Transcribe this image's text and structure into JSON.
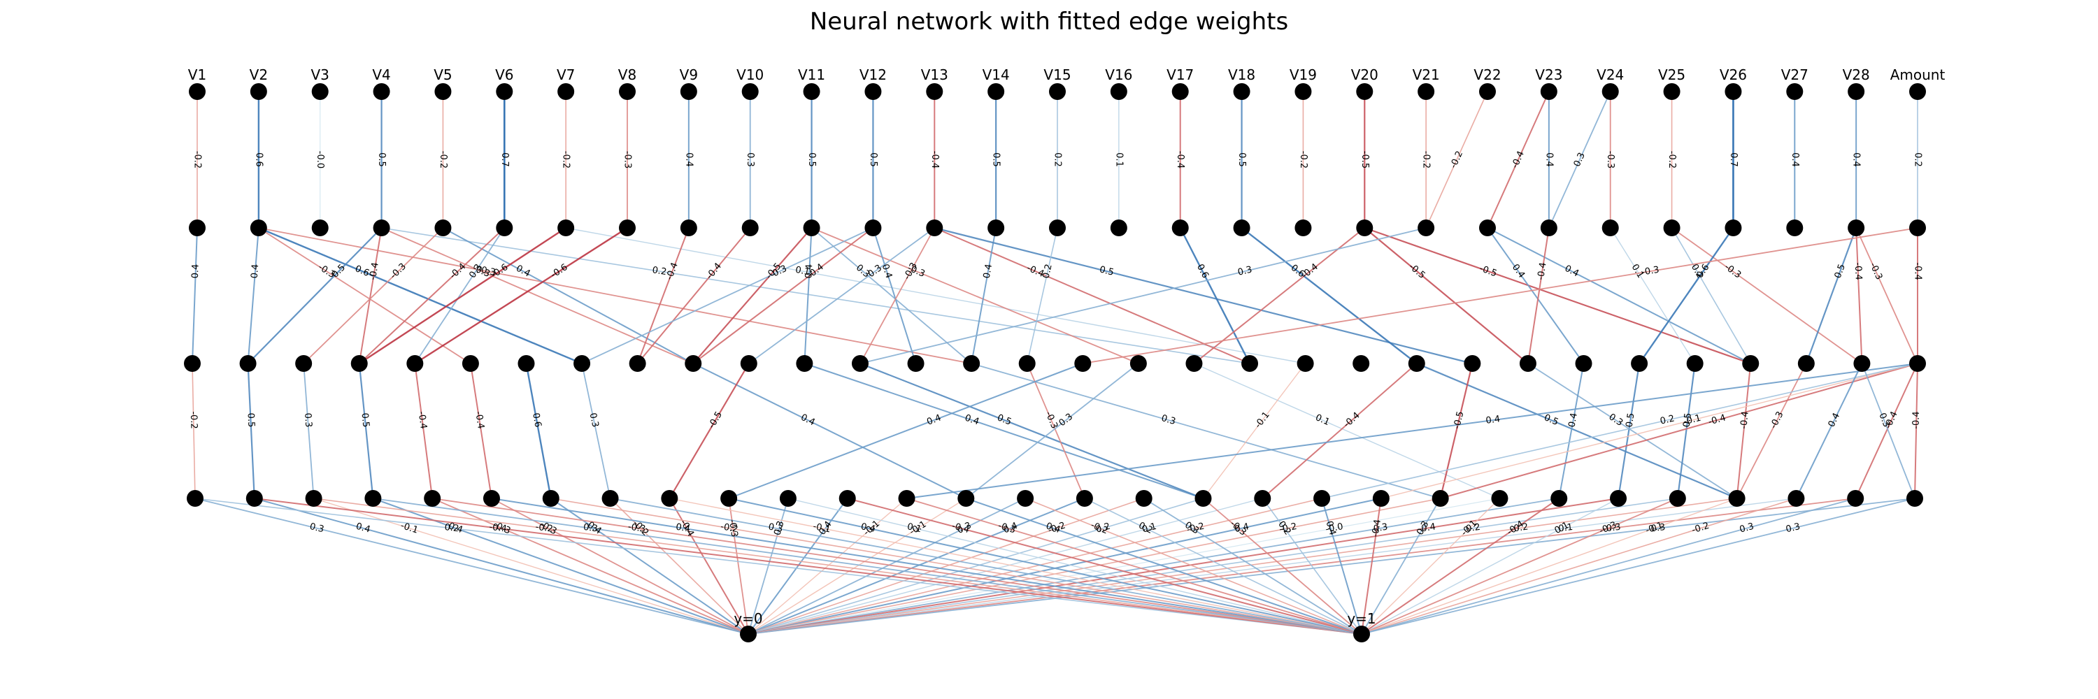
{
  "title": "Neural network with fitted edge weights",
  "input_labels": [
    "V1",
    "V2",
    "V3",
    "V4",
    "V5",
    "V6",
    "V7",
    "V8",
    "V9",
    "V10",
    "V11",
    "V12",
    "V13",
    "V14",
    "V15",
    "V16",
    "V17",
    "V18",
    "V19",
    "V20",
    "V21",
    "V22",
    "V23",
    "V24",
    "V25",
    "V26",
    "V27",
    "V28",
    "Amount"
  ],
  "output_labels": [
    "y=0",
    "y=1"
  ],
  "layers": [
    {
      "name": "input",
      "size": 29
    },
    {
      "name": "hidden1",
      "size": 29
    },
    {
      "name": "hidden2",
      "size": 32
    },
    {
      "name": "hidden3",
      "size": 30
    },
    {
      "name": "output",
      "size": 2
    }
  ],
  "colors": {
    "background": "#ffffff",
    "node": "#000000",
    "text": "#000000",
    "negative_strong": "#b2182b",
    "negative_weak": "#fddbc7",
    "positive_weak": "#d1e5f0",
    "positive_strong": "#2166ac"
  },
  "edges_l0_l1": [
    {
      "s": 0,
      "t": 0,
      "w": -0.2
    },
    {
      "s": 1,
      "t": 1,
      "w": 0.6
    },
    {
      "s": 2,
      "t": 2,
      "w": -0.0
    },
    {
      "s": 3,
      "t": 3,
      "w": 0.5
    },
    {
      "s": 4,
      "t": 4,
      "w": -0.2
    },
    {
      "s": 5,
      "t": 5,
      "w": 0.7
    },
    {
      "s": 6,
      "t": 6,
      "w": -0.2
    },
    {
      "s": 7,
      "t": 7,
      "w": -0.3
    },
    {
      "s": 8,
      "t": 8,
      "w": 0.4
    },
    {
      "s": 9,
      "t": 9,
      "w": 0.3
    },
    {
      "s": 10,
      "t": 10,
      "w": 0.5
    },
    {
      "s": 11,
      "t": 11,
      "w": 0.5
    },
    {
      "s": 12,
      "t": 12,
      "w": -0.4
    },
    {
      "s": 13,
      "t": 13,
      "w": 0.5
    },
    {
      "s": 14,
      "t": 14,
      "w": 0.2
    },
    {
      "s": 15,
      "t": 15,
      "w": 0.1
    },
    {
      "s": 16,
      "t": 16,
      "w": -0.4
    },
    {
      "s": 17,
      "t": 17,
      "w": 0.5
    },
    {
      "s": 18,
      "t": 18,
      "w": -0.2
    },
    {
      "s": 19,
      "t": 19,
      "w": -0.5
    },
    {
      "s": 20,
      "t": 20,
      "w": -0.2
    },
    {
      "s": 21,
      "t": 20,
      "w": -0.2
    },
    {
      "s": 22,
      "t": 21,
      "w": -0.4
    },
    {
      "s": 22,
      "t": 22,
      "w": 0.4
    },
    {
      "s": 23,
      "t": 22,
      "w": 0.3
    },
    {
      "s": 23,
      "t": 23,
      "w": -0.3
    },
    {
      "s": 24,
      "t": 24,
      "w": -0.2
    },
    {
      "s": 25,
      "t": 25,
      "w": 0.7
    },
    {
      "s": 26,
      "t": 26,
      "w": 0.4
    },
    {
      "s": 27,
      "t": 27,
      "w": 0.4
    },
    {
      "s": 28,
      "t": 28,
      "w": 0.2
    }
  ],
  "edges_l1_l2": [
    {
      "s": 0,
      "t": 0,
      "w": 0.4
    },
    {
      "s": 1,
      "t": 1,
      "w": 0.4
    },
    {
      "s": 1,
      "t": 5,
      "w": -0.3
    },
    {
      "s": 1,
      "t": 7,
      "w": 0.6
    },
    {
      "s": 1,
      "t": 14,
      "w": -0.3
    },
    {
      "s": 3,
      "t": 1,
      "w": 0.5
    },
    {
      "s": 3,
      "t": 3,
      "w": -0.4
    },
    {
      "s": 3,
      "t": 9,
      "w": -0.3
    },
    {
      "s": 3,
      "t": 19,
      "w": 0.2
    },
    {
      "s": 4,
      "t": 2,
      "w": -0.3
    },
    {
      "s": 4,
      "t": 9,
      "w": 0.4
    },
    {
      "s": 5,
      "t": 4,
      "w": 0.3
    },
    {
      "s": 5,
      "t": 3,
      "w": -0.4
    },
    {
      "s": 6,
      "t": 3,
      "w": -0.6
    },
    {
      "s": 6,
      "t": 20,
      "w": 0.1
    },
    {
      "s": 7,
      "t": 4,
      "w": -0.6
    },
    {
      "s": 8,
      "t": 8,
      "w": -0.4
    },
    {
      "s": 9,
      "t": 8,
      "w": -0.4
    },
    {
      "s": 10,
      "t": 9,
      "w": -0.5
    },
    {
      "s": 10,
      "t": 11,
      "w": 0.4
    },
    {
      "s": 10,
      "t": 14,
      "w": 0.3
    },
    {
      "s": 10,
      "t": 17,
      "w": -0.3
    },
    {
      "s": 11,
      "t": 7,
      "w": 0.3
    },
    {
      "s": 11,
      "t": 9,
      "w": -0.4
    },
    {
      "s": 11,
      "t": 13,
      "w": 0.4
    },
    {
      "s": 12,
      "t": 10,
      "w": 0.3
    },
    {
      "s": 12,
      "t": 12,
      "w": -0.3
    },
    {
      "s": 12,
      "t": 19,
      "w": -0.4
    },
    {
      "s": 13,
      "t": 14,
      "w": 0.4
    },
    {
      "s": 12,
      "t": 23,
      "w": 0.5
    },
    {
      "s": 14,
      "t": 15,
      "w": 0.2
    },
    {
      "s": 16,
      "t": 19,
      "w": 0.6
    },
    {
      "s": 17,
      "t": 22,
      "w": 0.6
    },
    {
      "s": 19,
      "t": 18,
      "w": -0.4
    },
    {
      "s": 19,
      "t": 24,
      "w": -0.5
    },
    {
      "s": 19,
      "t": 28,
      "w": -0.5
    },
    {
      "s": 20,
      "t": 12,
      "w": 0.3
    },
    {
      "s": 21,
      "t": 25,
      "w": 0.4
    },
    {
      "s": 21,
      "t": 28,
      "w": 0.4
    },
    {
      "s": 22,
      "t": 24,
      "w": -0.4
    },
    {
      "s": 23,
      "t": 27,
      "w": 0.1
    },
    {
      "s": 24,
      "t": 30,
      "w": -0.3
    },
    {
      "s": 24,
      "t": 28,
      "w": 0.2
    },
    {
      "s": 25,
      "t": 26,
      "w": 0.6
    },
    {
      "s": 27,
      "t": 30,
      "w": -0.4
    },
    {
      "s": 27,
      "t": 29,
      "w": 0.5
    },
    {
      "s": 27,
      "t": 31,
      "w": -0.3
    },
    {
      "s": 28,
      "t": 31,
      "w": -0.4
    },
    {
      "s": 28,
      "t": 16,
      "w": -0.3
    }
  ],
  "edges_l2_l3": [
    {
      "s": 0,
      "t": 0,
      "w": -0.2
    },
    {
      "s": 1,
      "t": 1,
      "w": 0.5
    },
    {
      "s": 2,
      "t": 2,
      "w": 0.3
    },
    {
      "s": 3,
      "t": 3,
      "w": 0.5
    },
    {
      "s": 4,
      "t": 4,
      "w": -0.4
    },
    {
      "s": 5,
      "t": 5,
      "w": -0.4
    },
    {
      "s": 6,
      "t": 6,
      "w": 0.6
    },
    {
      "s": 7,
      "t": 7,
      "w": 0.3
    },
    {
      "s": 9,
      "t": 13,
      "w": 0.4
    },
    {
      "s": 10,
      "t": 8,
      "w": -0.5
    },
    {
      "s": 11,
      "t": 17,
      "w": 0.4
    },
    {
      "s": 12,
      "t": 17,
      "w": 0.5
    },
    {
      "s": 14,
      "t": 21,
      "w": 0.3
    },
    {
      "s": 15,
      "t": 15,
      "w": -0.3
    },
    {
      "s": 16,
      "t": 9,
      "w": 0.4
    },
    {
      "s": 17,
      "t": 13,
      "w": 0.3
    },
    {
      "s": 18,
      "t": 22,
      "w": 0.1
    },
    {
      "s": 20,
      "t": 17,
      "w": -0.1
    },
    {
      "s": 22,
      "t": 18,
      "w": -0.4
    },
    {
      "s": 22,
      "t": 26,
      "w": 0.5
    },
    {
      "s": 23,
      "t": 21,
      "w": -0.5
    },
    {
      "s": 24,
      "t": 26,
      "w": 0.3
    },
    {
      "s": 25,
      "t": 23,
      "w": 0.4
    },
    {
      "s": 26,
      "t": 24,
      "w": 0.5
    },
    {
      "s": 27,
      "t": 25,
      "w": 0.5
    },
    {
      "s": 28,
      "t": 26,
      "w": -0.4
    },
    {
      "s": 29,
      "t": 26,
      "w": -0.3
    },
    {
      "s": 31,
      "t": 21,
      "w": -0.4
    },
    {
      "s": 31,
      "t": 20,
      "w": -0.1
    },
    {
      "s": 31,
      "t": 28,
      "w": -0.4
    },
    {
      "s": 31,
      "t": 29,
      "w": -0.4
    },
    {
      "s": 31,
      "t": 19,
      "w": 0.2
    },
    {
      "s": 31,
      "t": 12,
      "w": 0.4
    },
    {
      "s": 30,
      "t": 27,
      "w": 0.4
    },
    {
      "s": 30,
      "t": 29,
      "w": 0.3
    }
  ],
  "edges_l3_l4": [
    {
      "s": 0,
      "t": 0,
      "w": 0.3
    },
    {
      "s": 1,
      "t": 0,
      "w": 0.4
    },
    {
      "s": 2,
      "t": 0,
      "w": -0.1
    },
    {
      "s": 3,
      "t": 0,
      "w": 0.4
    },
    {
      "s": 4,
      "t": 0,
      "w": -0.3
    },
    {
      "s": 5,
      "t": 0,
      "w": -0.3
    },
    {
      "s": 6,
      "t": 0,
      "w": 0.4
    },
    {
      "s": 7,
      "t": 0,
      "w": -0.2
    },
    {
      "s": 8,
      "t": 0,
      "w": -0.4
    },
    {
      "s": 9,
      "t": 0,
      "w": -0.3
    },
    {
      "s": 10,
      "t": 0,
      "w": 0.3
    },
    {
      "s": 11,
      "t": 0,
      "w": 0.4
    },
    {
      "s": 12,
      "t": 0,
      "w": -0.1
    },
    {
      "s": 13,
      "t": 0,
      "w": -0.1
    },
    {
      "s": 14,
      "t": 0,
      "w": 0.3
    },
    {
      "s": 15,
      "t": 0,
      "w": 0.4
    },
    {
      "s": 16,
      "t": 0,
      "w": -0.2
    },
    {
      "s": 17,
      "t": 0,
      "w": 0.2
    },
    {
      "s": 18,
      "t": 0,
      "w": 0.1
    },
    {
      "s": 19,
      "t": 0,
      "w": -0.2
    },
    {
      "s": 20,
      "t": 0,
      "w": 0.4
    },
    {
      "s": 21,
      "t": 0,
      "w": -0.2
    },
    {
      "s": 22,
      "t": 0,
      "w": -0.0
    },
    {
      "s": 23,
      "t": 0,
      "w": 0.3
    },
    {
      "s": 24,
      "t": 0,
      "w": -0.4
    },
    {
      "s": 25,
      "t": 0,
      "w": 0.2
    },
    {
      "s": 26,
      "t": 0,
      "w": -0.2
    },
    {
      "s": 27,
      "t": 0,
      "w": 0.1
    },
    {
      "s": 28,
      "t": 0,
      "w": -0.3
    },
    {
      "s": 29,
      "t": 0,
      "w": 0.3
    },
    {
      "s": 0,
      "t": 1,
      "w": 0.2
    },
    {
      "s": 1,
      "t": 1,
      "w": -0.4
    },
    {
      "s": 2,
      "t": 1,
      "w": -0.2
    },
    {
      "s": 3,
      "t": 1,
      "w": 0.3
    },
    {
      "s": 4,
      "t": 1,
      "w": -0.3
    },
    {
      "s": 5,
      "t": 1,
      "w": 0.4
    },
    {
      "s": 6,
      "t": 1,
      "w": -0.2
    },
    {
      "s": 7,
      "t": 1,
      "w": 0.3
    },
    {
      "s": 8,
      "t": 1,
      "w": -0.1
    },
    {
      "s": 9,
      "t": 1,
      "w": 0.4
    },
    {
      "s": 10,
      "t": 1,
      "w": 0.1
    },
    {
      "s": 11,
      "t": 1,
      "w": -0.4
    },
    {
      "s": 12,
      "t": 1,
      "w": -0.3
    },
    {
      "s": 13,
      "t": 1,
      "w": 0.4
    },
    {
      "s": 14,
      "t": 1,
      "w": -0.2
    },
    {
      "s": 15,
      "t": 1,
      "w": 0.2
    },
    {
      "s": 16,
      "t": 1,
      "w": 0.3
    },
    {
      "s": 17,
      "t": 1,
      "w": -0.3
    },
    {
      "s": 18,
      "t": 1,
      "w": 0.2
    },
    {
      "s": 19,
      "t": 1,
      "w": 0.4
    },
    {
      "s": 20,
      "t": 1,
      "w": -0.4
    },
    {
      "s": 21,
      "t": 1,
      "w": 0.3
    },
    {
      "s": 22,
      "t": 1,
      "w": -0.1
    },
    {
      "s": 23,
      "t": 1,
      "w": -0.4
    },
    {
      "s": 24,
      "t": 1,
      "w": 0.1
    },
    {
      "s": 25,
      "t": 1,
      "w": -0.3
    },
    {
      "s": 26,
      "t": 1,
      "w": -0.1
    },
    {
      "s": 27,
      "t": 1,
      "w": -0.2
    },
    {
      "s": 28,
      "t": 1,
      "w": 0.3
    },
    {
      "s": 29,
      "t": 1,
      "w": 0.3
    }
  ]
}
